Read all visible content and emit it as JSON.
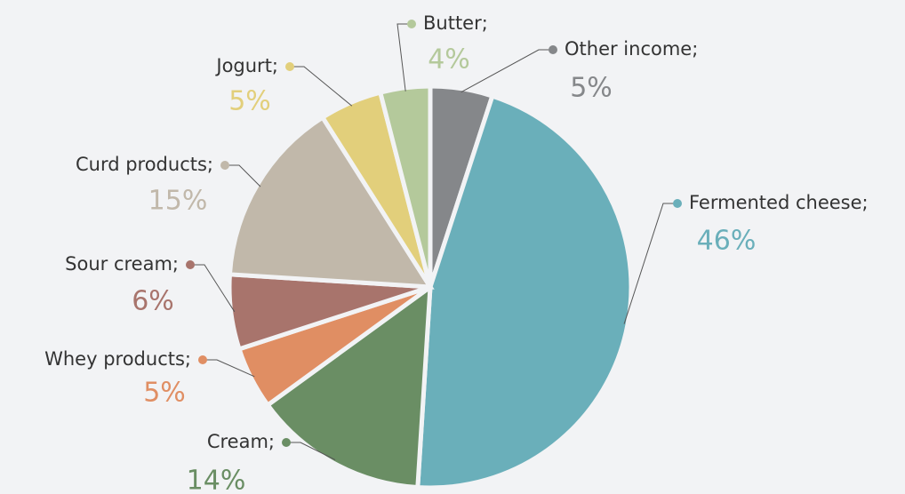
{
  "chart_data": {
    "type": "pie",
    "categories": [
      "Other income;",
      "Fermented cheese;",
      "Cream;",
      "Whey products;",
      "Sour cream;",
      "Curd products;",
      "Jogurt;",
      "Butter;"
    ],
    "values": [
      5,
      46,
      14,
      5,
      6,
      15,
      5,
      4
    ],
    "value_labels": [
      "5%",
      "46%",
      "14%",
      "5%",
      "6%",
      "15%",
      "5%",
      "4%"
    ],
    "colors": [
      "#85878a",
      "#6aafba",
      "#6a8e64",
      "#e08e63",
      "#a8746c",
      "#c1b8aa",
      "#e2cf7b",
      "#b4c99b"
    ]
  }
}
